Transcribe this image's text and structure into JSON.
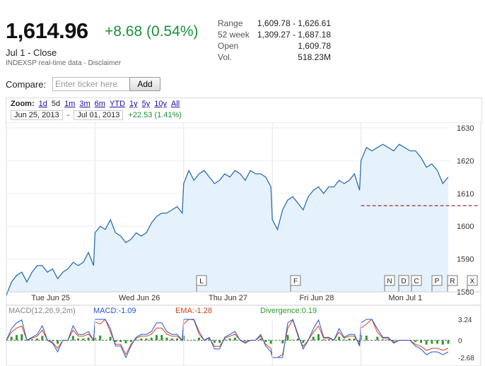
{
  "quote": {
    "price": "1,614.96",
    "change": "+8.68 (0.54%)",
    "close_label": "Jul 1 - Close",
    "source": "INDEXSP real-time data - Disclaimer",
    "colors": {
      "positive": "#1d8f3a"
    }
  },
  "stats": [
    {
      "label": "Range",
      "value": "1,609.78 - 1,626.61"
    },
    {
      "label": "52 week",
      "value": "1,309.27 - 1,687.18"
    },
    {
      "label": "Open",
      "value": "1,609.78"
    },
    {
      "label": "Vol.",
      "value": "518.23M"
    }
  ],
  "compare": {
    "label": "Compare:",
    "placeholder": "Enter ticker here",
    "button": "Add"
  },
  "zoom": {
    "label": "Zoom:",
    "options": [
      "1d",
      "5d",
      "1m",
      "3m",
      "6m",
      "YTD",
      "1y",
      "5y",
      "10y",
      "All"
    ],
    "active": "5d",
    "start_date": "Jun 25, 2013",
    "separator": "-",
    "end_date": "Jul 01, 2013",
    "range_change": "+22.53 (1.41%)"
  },
  "chart_data": {
    "type": "line",
    "x": [
      "Tue Jun 25",
      "Wed Jun 26",
      "Thu Jun 27",
      "Fri Jun 28",
      "Mon Jul 1"
    ],
    "day_labels": [
      "Tue Jun 25",
      "Wed Jun 26",
      "Thu Jun 27",
      "Fri Jun 28",
      "Mon Jul 1"
    ],
    "y_ticks": [
      "1630",
      "1620",
      "1610",
      "1600",
      "1590",
      "1580"
    ],
    "ylim": [
      1580,
      1630
    ],
    "previous_close": 1606.28,
    "series": [
      {
        "days": [
          [
            1579,
            1583,
            1585,
            1586,
            1583,
            1586,
            1588,
            1588,
            1586,
            1587,
            1584,
            1586,
            1587,
            1589,
            1588,
            1589,
            1592,
            1588
          ],
          [
            1598,
            1600,
            1599,
            1602,
            1598,
            1597,
            1595,
            1596,
            1598,
            1597,
            1598,
            1601,
            1603,
            1604,
            1604,
            1605,
            1606,
            1604
          ],
          [
            1613,
            1617,
            1614,
            1616,
            1617,
            1615,
            1613,
            1614,
            1616,
            1615,
            1617,
            1616,
            1614,
            1617,
            1616,
            1616,
            1615,
            1612
          ],
          [
            1602,
            1599,
            1605,
            1608,
            1609,
            1607,
            1605,
            1609,
            1611,
            1612,
            1610,
            1612,
            1612,
            1614,
            1613,
            1614,
            1616,
            1611
          ],
          [
            1620,
            1624,
            1623,
            1624,
            1625,
            1624,
            1623,
            1625,
            1624,
            1623,
            1623,
            1621,
            1618,
            1619,
            1617,
            1613,
            1615
          ]
        ]
      }
    ],
    "event_flags": [
      "L",
      "F",
      "N",
      "D",
      "C",
      "P",
      "R",
      "X"
    ],
    "macd": {
      "title": "MACD(12,26,9,2m)",
      "macd_label": "MACD:-1.09",
      "ema_label": "EMA:-1.28",
      "divergence_label": "Divergence:0.19",
      "y_ticks": [
        "3.24",
        "0",
        "-2.68"
      ],
      "ylim": [
        -2.68,
        3.24
      ]
    },
    "colors": {
      "line": "#2b6eb5",
      "fill": "#e6f2fb",
      "prev_close": "#8b1a1a",
      "macd": "#2255cc",
      "ema": "#d04020",
      "divergence": "#2e9a2e"
    }
  }
}
